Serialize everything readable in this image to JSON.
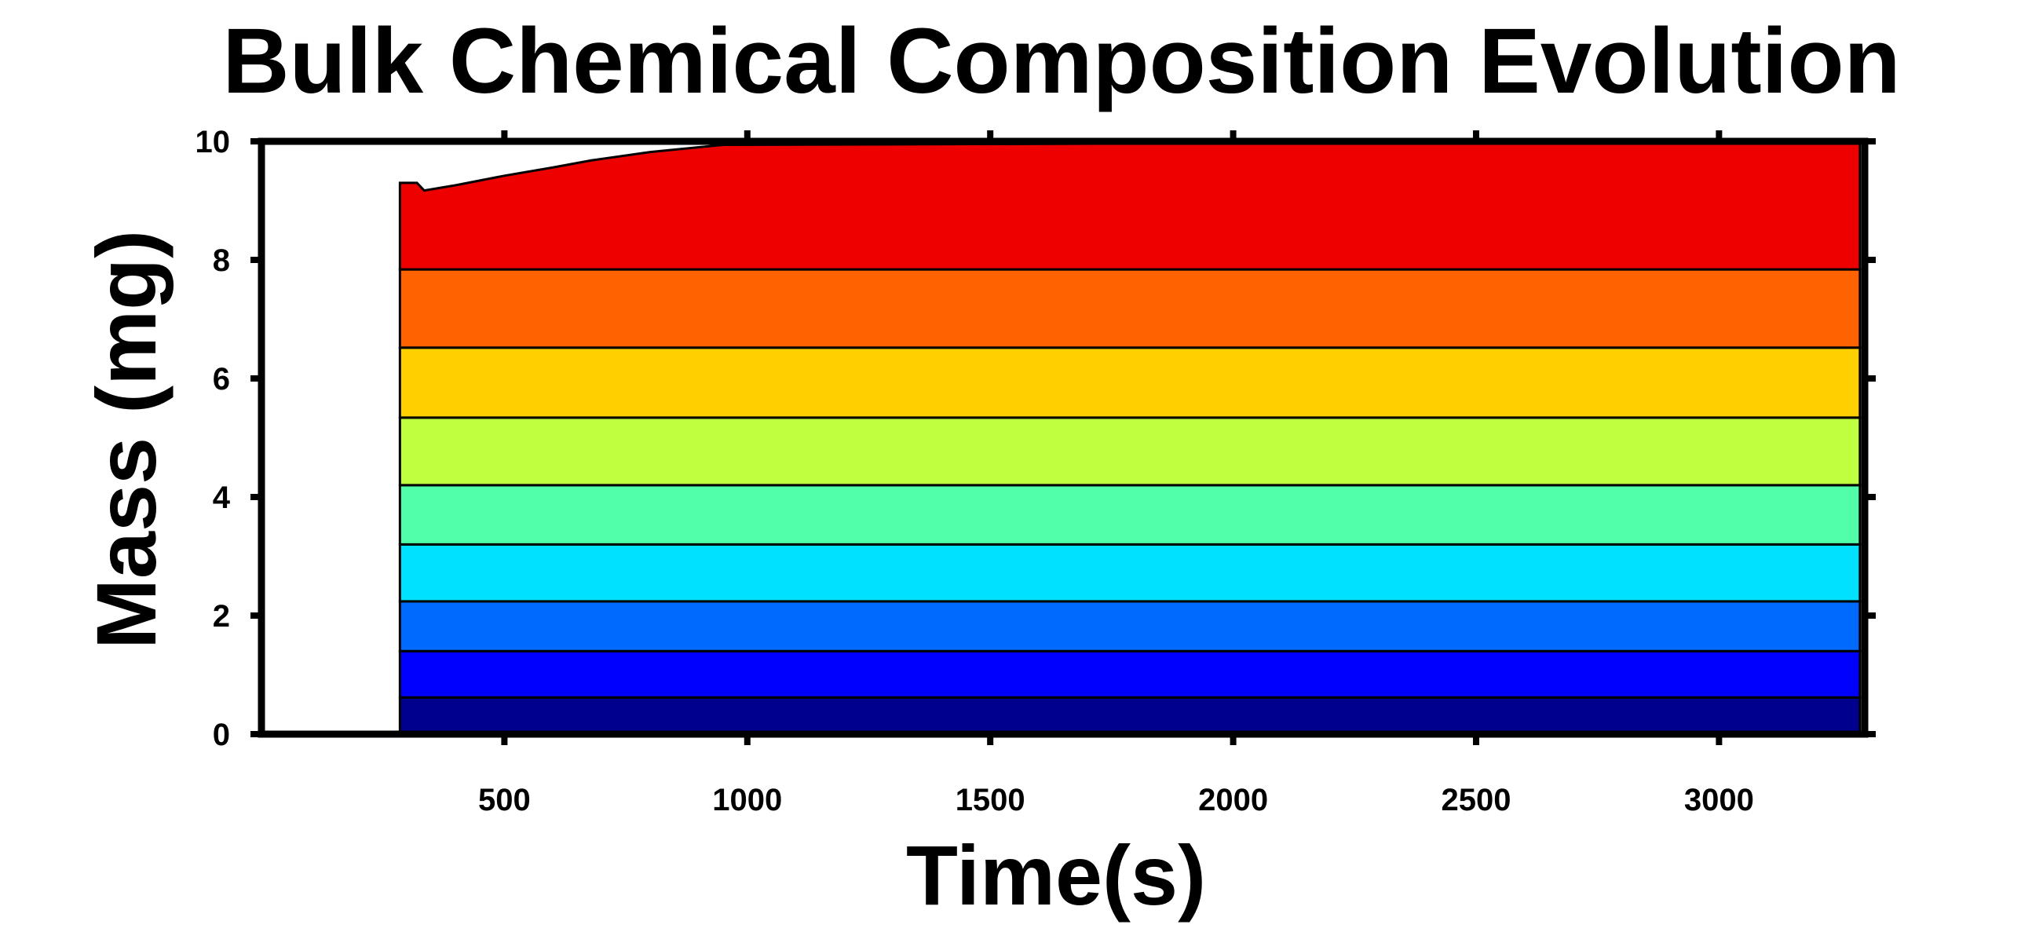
{
  "chart_data": {
    "type": "area",
    "title": "Bulk Chemical Composition Evolution",
    "xlabel": "Time(s)",
    "ylabel": "Mass (mg)",
    "xlim": [
      0,
      3300
    ],
    "ylim": [
      0,
      10
    ],
    "x_ticks": [
      500,
      1000,
      1500,
      2000,
      2500,
      3000
    ],
    "y_ticks": [
      0,
      2,
      4,
      6,
      8,
      10
    ],
    "grid": false,
    "legend": "none",
    "stacked": true,
    "x_start": 285,
    "x_end": 3290,
    "series": [
      {
        "color": "#00008f",
        "values_constant": 0.62
      },
      {
        "color": "#0000ff",
        "values_constant": 0.78
      },
      {
        "color": "#006aff",
        "values_constant": 0.84
      },
      {
        "color": "#00e0ff",
        "values_constant": 0.96
      },
      {
        "color": "#50ffa8",
        "values_constant": 1.0
      },
      {
        "color": "#bfff3f",
        "values_constant": 1.14
      },
      {
        "color": "#ffd000",
        "values_constant": 1.18
      },
      {
        "color": "#ff6200",
        "values_constant": 1.32
      },
      {
        "color": "#ee0000",
        "x": [
          285,
          320,
          335,
          400,
          500,
          600,
          680,
          800,
          950,
          3290
        ],
        "values": [
          1.46,
          1.46,
          1.33,
          1.42,
          1.58,
          1.72,
          1.84,
          1.98,
          2.1,
          2.16
        ]
      }
    ]
  }
}
